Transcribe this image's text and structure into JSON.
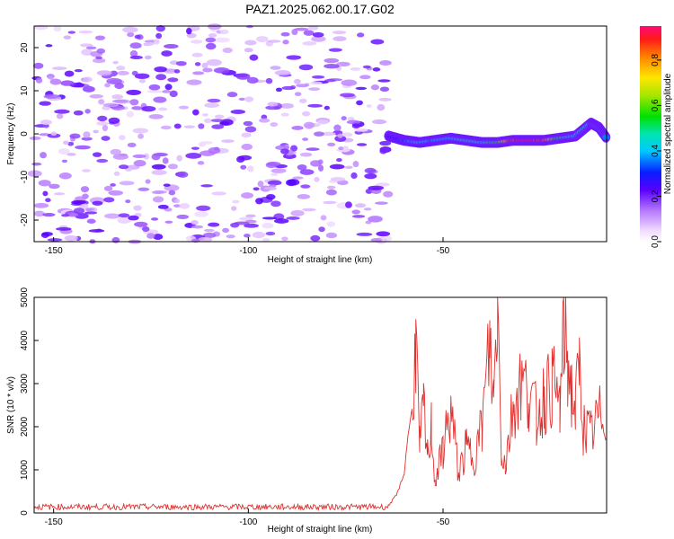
{
  "title": "PAZ1.2025.062.00.17.G02",
  "chart_data": [
    {
      "type": "heatmap",
      "xlabel": "Height of straight line (km)",
      "ylabel": "Frequency (Hz)",
      "xlim": [
        -155,
        -8
      ],
      "ylim": [
        -25,
        25
      ],
      "x_ticks": [
        -150,
        -100,
        -50
      ],
      "y_ticks": [
        -20,
        -10,
        0,
        10,
        20
      ],
      "grid": false,
      "noise_region": {
        "x_start": -155,
        "x_end": -64,
        "y_range": [
          -25,
          25
        ],
        "level": [
          0.05,
          0.25
        ]
      },
      "signal_track": {
        "x": [
          -64,
          -60,
          -56,
          -52,
          -48,
          -44,
          -40,
          -36,
          -32,
          -28,
          -24,
          -20,
          -16,
          -12,
          -10,
          -8
        ],
        "y": [
          -0.5,
          -1.5,
          -2,
          -1.5,
          -1,
          -1.5,
          -2,
          -2,
          -1.5,
          -1.5,
          -1.5,
          -1,
          -0.5,
          2.5,
          1.5,
          -1
        ],
        "amplitude": [
          0.25,
          0.35,
          0.45,
          0.4,
          0.45,
          0.5,
          0.5,
          0.55,
          0.95,
          1.0,
          0.95,
          0.55,
          0.45,
          0.5,
          0.45,
          0.4
        ]
      },
      "colorbar": {
        "label": "Normalized spectral amplitude",
        "range": [
          0.0,
          0.95
        ],
        "ticks": [
          "0.0",
          "0.2",
          "0.4",
          "0.6",
          "0.8"
        ],
        "colormap": "rainbow-white-to-red"
      }
    },
    {
      "type": "line",
      "xlabel": "Height of straight line (km)",
      "ylabel": "SNR (10 * v/v)",
      "xlim": [
        -155,
        -8
      ],
      "ylim": [
        0,
        5000
      ],
      "x_ticks": [
        -150,
        -100,
        -50
      ],
      "y_ticks": [
        0,
        1000,
        2000,
        3000,
        4000,
        5000
      ],
      "grid": false,
      "color": "#e0302e",
      "series": [
        {
          "x": [
            -155,
            -130,
            -120,
            -110,
            -95,
            -85,
            -70,
            -64,
            -62,
            -60,
            -59,
            -58,
            -57,
            -56,
            -55,
            -54,
            -53,
            -52,
            -50,
            -48,
            -46,
            -44,
            -42,
            -40,
            -38,
            -37,
            -36,
            -35,
            -34,
            -32,
            -30,
            -28,
            -26,
            -24,
            -22,
            -20,
            -19,
            -18,
            -17,
            -16,
            -15,
            -14,
            -12,
            -10,
            -8
          ],
          "y": [
            150,
            160,
            200,
            150,
            140,
            150,
            150,
            180,
            400,
            900,
            1800,
            2400,
            4000,
            1500,
            2400,
            1300,
            2000,
            700,
            1500,
            2400,
            900,
            1500,
            1300,
            2000,
            3900,
            2600,
            5000,
            1500,
            1100,
            2500,
            3000,
            2800,
            2200,
            2700,
            3000,
            2500,
            4150,
            3500,
            2800,
            2400,
            3300,
            2000,
            1800,
            2200,
            2400
          ]
        }
      ],
      "noise_floor": {
        "x_start": -155,
        "x_end": -64,
        "mean": 140,
        "jitter": 70
      }
    }
  ]
}
